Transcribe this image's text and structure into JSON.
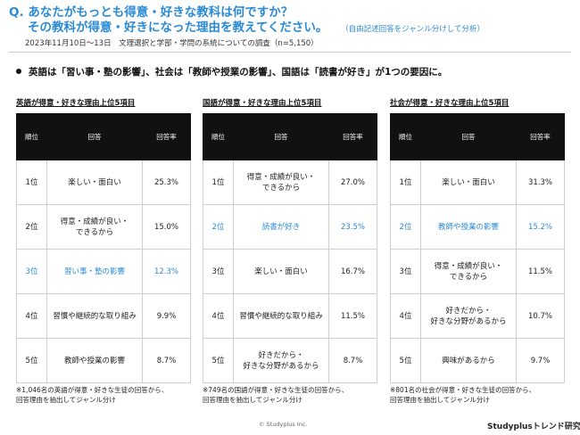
{
  "header": {
    "q_prefix": "Q.",
    "question_line1": "あなたがもっとも得意・好きな教科は何ですか？",
    "question_line2": "その教科が得意・好きになった理由を教えてください。",
    "question_note": "（自由記述回答をジャンル分けして分析）",
    "survey_info": "2023年11月10日〜13日　文理選択と学部・学問の系統についての調査（n=5,150）"
  },
  "summary": "英語は「習い事・塾の影響」、社会は「教師や授業の影響」、国語は「読書が好き」が1つの要因に。",
  "table_headers": {
    "rank": "順位",
    "answer": "回答",
    "rate": "回答率"
  },
  "accent_color": "#2a8ad4",
  "panels": [
    {
      "title": "英語が得意・好きな理由上位5項目",
      "rows": [
        {
          "rank": "1位",
          "a1": "楽しい・面白い",
          "a2": "",
          "rate": "25.3%"
        },
        {
          "rank": "2位",
          "a1": "得意・成績が良い・",
          "a2": "できるから",
          "rate": "15.0%"
        },
        {
          "rank": "3位",
          "a1": "習い事・塾の影響",
          "a2": "",
          "rate": "12.3%"
        },
        {
          "rank": "4位",
          "a1": "習慣や継続的な取り組み",
          "a2": "",
          "rate": "9.9%"
        },
        {
          "rank": "5位",
          "a1": "教師や授業の影響",
          "a2": "",
          "rate": "8.7%"
        }
      ],
      "footnote1": "※1,046名の英語が得意・好きな生徒の回答から、",
      "footnote2": "回答理由を抽出してジャンル分け"
    },
    {
      "title": "国語が得意・好きな理由上位5項目",
      "rows": [
        {
          "rank": "1位",
          "a1": "得意・成績が良い・",
          "a2": "できるから",
          "rate": "27.0%"
        },
        {
          "rank": "2位",
          "a1": "読書が好き",
          "a2": "",
          "rate": "23.5%"
        },
        {
          "rank": "3位",
          "a1": "楽しい・面白い",
          "a2": "",
          "rate": "16.7%"
        },
        {
          "rank": "4位",
          "a1": "習慣や継続的な取り組み",
          "a2": "",
          "rate": "11.5%"
        },
        {
          "rank": "5位",
          "a1": "好きだから・",
          "a2": "好きな分野があるから",
          "rate": "8.7%"
        }
      ],
      "footnote1": "※749名の国語が得意・好きな生徒の回答から、",
      "footnote2": "回答理由を抽出してジャンル分け"
    },
    {
      "title": "社会が得意・好きな理由上位5項目",
      "rows": [
        {
          "rank": "1位",
          "a1": "楽しい・面白い",
          "a2": "",
          "rate": "31.3%"
        },
        {
          "rank": "2位",
          "a1": "教師や授業の影響",
          "a2": "",
          "rate": "15.2%"
        },
        {
          "rank": "3位",
          "a1": "得意・成績が良い・",
          "a2": "できるから",
          "rate": "11.5%"
        },
        {
          "rank": "4位",
          "a1": "好きだから・",
          "a2": "好きな分野があるから",
          "rate": "10.7%"
        },
        {
          "rank": "5位",
          "a1": "興味があるから",
          "a2": "",
          "rate": "9.7%"
        }
      ],
      "footnote1": "※801名の社会が得意・好きな生徒の回答から、",
      "footnote2": "回答理由を抽出してジャンル分け"
    }
  ],
  "copyright": "© Studyplus Inc.",
  "brand": "Studyplusトレンド研究所"
}
